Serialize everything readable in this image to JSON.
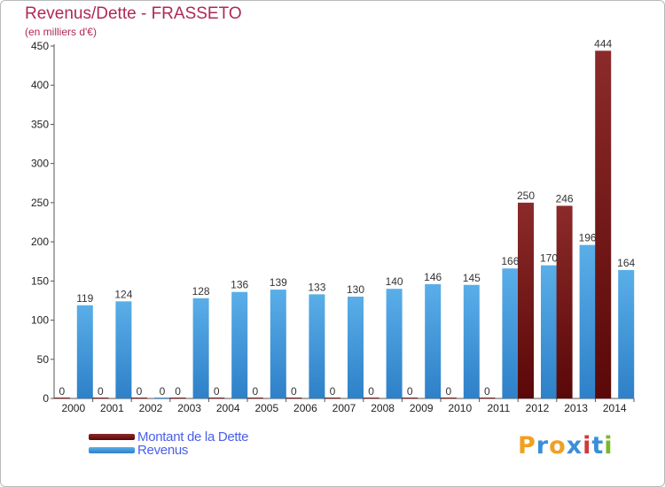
{
  "title": "Revenus/Dette - FRASSETO",
  "subtitle": "(en milliers d'€)",
  "logo_text": "Proxiti",
  "colors": {
    "title": "#b0285a",
    "dette": "#7a1a1a",
    "revenus": "#3a8fd8",
    "legend_text": "#4a5fe8",
    "logo": [
      "#f0a020",
      "#3a8fd8",
      "#f0a020",
      "#3a8fd8",
      "#d03a3a",
      "#3a8fd8",
      "#7ab82c"
    ]
  },
  "chart_data": {
    "type": "bar",
    "title": "Revenus/Dette - FRASSETO",
    "subtitle": "(en milliers d'€)",
    "categories": [
      "2000",
      "2001",
      "2002",
      "2003",
      "2004",
      "2005",
      "2006",
      "2007",
      "2008",
      "2009",
      "2010",
      "2011",
      "2012",
      "2013",
      "2014"
    ],
    "series": [
      {
        "name": "Montant de la Dette",
        "values": [
          0,
          0,
          0,
          0,
          0,
          0,
          0,
          0,
          0,
          0,
          0,
          0,
          250,
          246,
          444
        ],
        "labels": [
          "0",
          "0",
          "0",
          "0",
          "0",
          "0",
          "0",
          "0",
          "0",
          "0",
          "0",
          "0",
          "250",
          "246",
          "444"
        ]
      },
      {
        "name": "Revenus",
        "values": [
          119,
          124,
          0,
          128,
          136,
          139,
          133,
          130,
          140,
          146,
          145,
          166,
          170,
          196,
          164
        ],
        "labels": [
          "119",
          "124",
          "0",
          "128",
          "136",
          "139",
          "133",
          "130",
          "140",
          "146",
          "145",
          "166",
          "170",
          "196",
          "164"
        ]
      }
    ],
    "ylim": [
      0,
      450
    ],
    "yticks": [
      "0",
      "50",
      "100",
      "150",
      "200",
      "250",
      "300",
      "350",
      "400",
      "450"
    ],
    "grid": false,
    "legend": "bottom-left"
  }
}
